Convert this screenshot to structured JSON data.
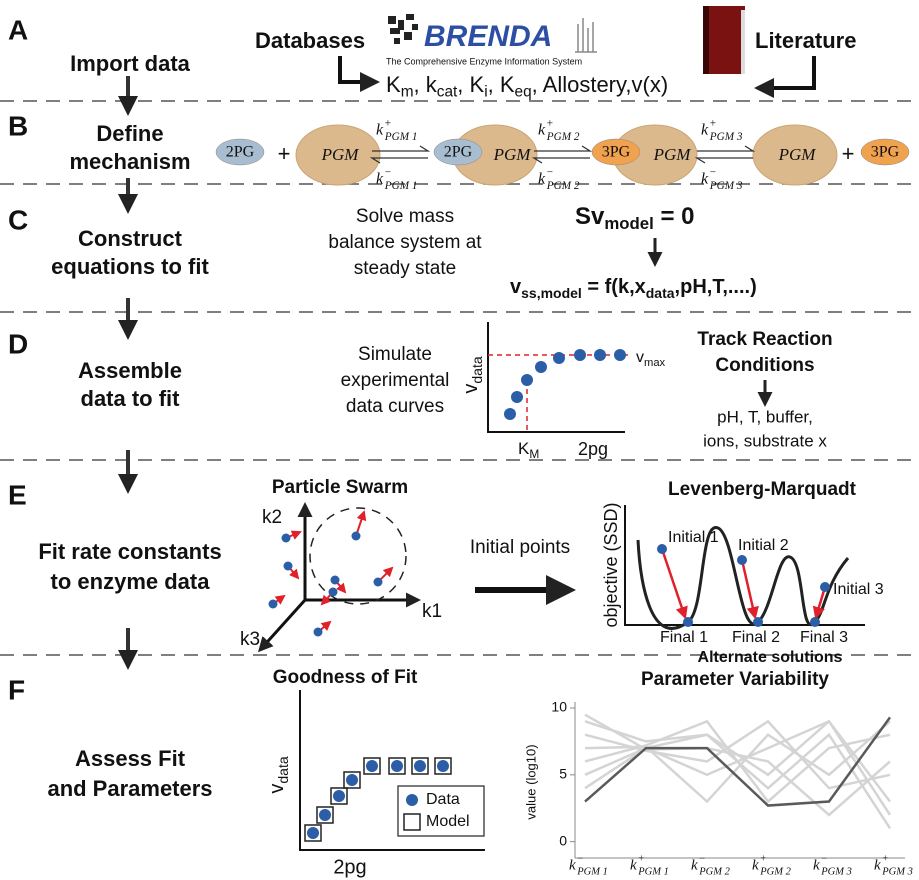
{
  "steps": [
    {
      "letter": "A",
      "label": [
        "Import data"
      ]
    },
    {
      "letter": "B",
      "label": [
        "Define",
        "mechanism"
      ]
    },
    {
      "letter": "C",
      "label": [
        "Construct",
        "equations to fit"
      ]
    },
    {
      "letter": "D",
      "label": [
        "Assemble",
        "data to fit"
      ]
    },
    {
      "letter": "E",
      "label": [
        "Fit rate constants",
        "to enzyme data"
      ]
    },
    {
      "letter": "F",
      "label": [
        "Assess Fit",
        "and Parameters"
      ]
    }
  ],
  "panel_a": {
    "databases": "Databases",
    "brenda": "BRENDA",
    "brenda_subtitle": "The Comprehensive Enzyme Information System",
    "literature": "Literature",
    "parameters": [
      {
        "text": "K"
      },
      {
        "text": "m",
        "style": "sub"
      },
      {
        "text": ", k"
      },
      {
        "text": "cat",
        "style": "sub"
      },
      {
        "text": ", K"
      },
      {
        "text": "i",
        "style": "sub"
      },
      {
        "text": ", K"
      },
      {
        "text": "eq",
        "style": "sub"
      },
      {
        "text": ", Allostery,v(x)"
      }
    ]
  },
  "panel_b": {
    "enzyme": "PGM",
    "substrate": "2PG",
    "product": "3PG",
    "plus": "+",
    "constants": [
      {
        "main": "k",
        "sup": "+",
        "sub": "PGM 1"
      },
      {
        "main": "k",
        "sup": "−",
        "sub": "PGM 1"
      },
      {
        "main": "k",
        "sup": "+",
        "sub": "PGM 2"
      },
      {
        "main": "k",
        "sup": "−",
        "sub": "PGM 2"
      },
      {
        "main": "k",
        "sup": "+",
        "sub": "PGM 3"
      },
      {
        "main": "k",
        "sup": "−",
        "sub": "PGM 3"
      }
    ]
  },
  "panel_c": {
    "description": [
      "Solve mass",
      "balance system at",
      "steady state"
    ],
    "balance": [
      {
        "text": "Sv"
      },
      {
        "text": "model",
        "style": "sub"
      },
      {
        "text": " = 0"
      }
    ],
    "rate": [
      {
        "text": "v"
      },
      {
        "text": "ss,model",
        "style": "sub"
      },
      {
        "text": " = f(k,x"
      },
      {
        "text": "data",
        "style": "sub"
      },
      {
        "text": ",pH,T,....)"
      }
    ]
  },
  "panel_d": {
    "description": [
      "Simulate",
      "experimental",
      "data curves"
    ],
    "y_label": [
      {
        "text": "v"
      },
      {
        "text": "data",
        "style": "sub"
      }
    ],
    "x_label": "2pg",
    "km": [
      {
        "text": "K"
      },
      {
        "text": "M",
        "style": "sub"
      }
    ],
    "vmax": [
      {
        "text": "v"
      },
      {
        "text": "max",
        "style": "sub"
      }
    ],
    "conditions_title": [
      "Track Reaction",
      "Conditions"
    ],
    "conditions": [
      "pH, T, buffer,",
      "ions, substrate x"
    ]
  },
  "panel_e": {
    "swarm_title": "Particle Swarm",
    "axes": [
      "k1",
      "k2",
      "k3"
    ],
    "arrow_label": "Initial points",
    "lm_title": "Levenberg-Marquadt",
    "y_label": "objective (SSD)",
    "initial": [
      "Initial 1",
      "Initial 2",
      "Initial 3"
    ],
    "final": [
      "Final 1",
      "Final 2",
      "Final 3"
    ],
    "x_label": "Alternate solutions"
  },
  "panel_f": {
    "fit_title": "Goodness of Fit",
    "y_label": [
      {
        "text": "v"
      },
      {
        "text": "data",
        "style": "sub"
      }
    ],
    "x_label": "2pg",
    "legend": [
      "Data",
      "Model"
    ]
  },
  "chart_data": {
    "type": "line",
    "title": "Parameter Variability",
    "y_label": "value (log10)",
    "categories": [
      {
        "main": "k",
        "sup": "−",
        "sub": "PGM 1"
      },
      {
        "main": "k",
        "sup": "+",
        "sub": "PGM 1"
      },
      {
        "main": "k",
        "sup": "−",
        "sub": "PGM 2"
      },
      {
        "main": "k",
        "sup": "+",
        "sub": "PGM 2"
      },
      {
        "main": "k",
        "sup": "−",
        "sub": "PGM 3"
      },
      {
        "main": "k",
        "sup": "+",
        "sub": "PGM 3"
      }
    ],
    "ylim": [
      -1,
      10
    ],
    "yticks": [
      0,
      5,
      10
    ],
    "series": [
      {
        "color": "#d4d4d4",
        "values": [
          9,
          7.5,
          8,
          5,
          9,
          2
        ]
      },
      {
        "color": "#d4d4d4",
        "values": [
          8,
          6.8,
          6,
          9,
          4,
          5
        ]
      },
      {
        "color": "#d4d4d4",
        "values": [
          6,
          7.2,
          9,
          3,
          7,
          8
        ]
      },
      {
        "color": "#d4d4d4",
        "values": [
          4,
          7,
          5,
          7,
          9,
          3
        ]
      },
      {
        "color": "#d4d4d4",
        "values": [
          9.5,
          6.9,
          7,
          6,
          2,
          6
        ]
      },
      {
        "color": "#d4d4d4",
        "values": [
          7,
          7.1,
          3,
          8,
          5,
          9
        ]
      },
      {
        "color": "#d4d4d4",
        "values": [
          5,
          7,
          8,
          4,
          8,
          1
        ]
      },
      {
        "color": "#5a5a5a",
        "values": [
          3,
          7,
          7,
          2.7,
          3,
          9.3
        ]
      }
    ]
  }
}
